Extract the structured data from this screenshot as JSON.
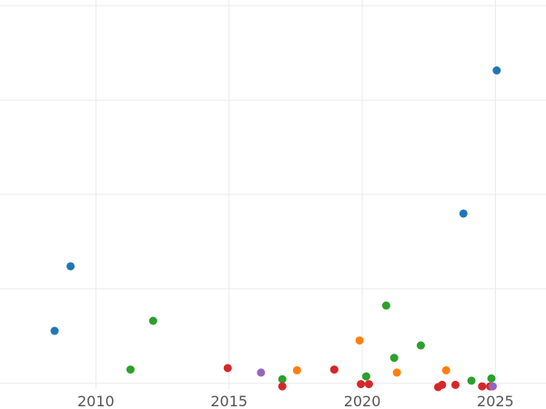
{
  "chart_data": {
    "type": "scatter",
    "title": "",
    "xlabel": "",
    "ylabel": "",
    "grid": true,
    "xlim": [
      2006.4,
      2026.9
    ],
    "ylim": [
      -0.3,
      20.3
    ],
    "x_ticks": [
      2010,
      2015,
      2020,
      2025
    ],
    "x_tick_labels": [
      "2010",
      "2015",
      "2020",
      "2025"
    ],
    "y_gridlines": [
      0,
      5,
      10,
      15,
      20
    ],
    "colors": {
      "blue": "#1f77b4",
      "orange": "#ff7f0e",
      "green": "#2ca02c",
      "red": "#d62728",
      "purple": "#9467bd"
    },
    "series": [
      {
        "color": "#1f77b4",
        "points": [
          {
            "x": 2008.45,
            "y": 2.78
          },
          {
            "x": 2009.05,
            "y": 6.2
          },
          {
            "x": 2023.8,
            "y": 8.99
          },
          {
            "x": 2025.05,
            "y": 16.57
          }
        ]
      },
      {
        "color": "#ff7f0e",
        "points": [
          {
            "x": 2017.55,
            "y": 0.69
          },
          {
            "x": 2019.9,
            "y": 2.27
          },
          {
            "x": 2021.3,
            "y": 0.57
          },
          {
            "x": 2023.15,
            "y": 0.69
          }
        ]
      },
      {
        "color": "#2ca02c",
        "points": [
          {
            "x": 2011.3,
            "y": 0.73
          },
          {
            "x": 2012.15,
            "y": 3.31
          },
          {
            "x": 2017.0,
            "y": 0.22
          },
          {
            "x": 2020.15,
            "y": 0.37
          },
          {
            "x": 2020.9,
            "y": 4.12
          },
          {
            "x": 2021.2,
            "y": 1.35
          },
          {
            "x": 2022.2,
            "y": 2.01
          },
          {
            "x": 2024.1,
            "y": 0.14
          },
          {
            "x": 2024.85,
            "y": 0.26
          }
        ]
      },
      {
        "color": "#d62728",
        "points": [
          {
            "x": 2014.95,
            "y": 0.81
          },
          {
            "x": 2017.0,
            "y": -0.16
          },
          {
            "x": 2018.95,
            "y": 0.73
          },
          {
            "x": 2019.95,
            "y": -0.04
          },
          {
            "x": 2020.25,
            "y": -0.04
          },
          {
            "x": 2022.85,
            "y": -0.2
          },
          {
            "x": 2023.0,
            "y": -0.08
          },
          {
            "x": 2023.5,
            "y": -0.08
          },
          {
            "x": 2024.5,
            "y": -0.16
          },
          {
            "x": 2024.8,
            "y": -0.16
          }
        ]
      },
      {
        "color": "#9467bd",
        "points": [
          {
            "x": 2016.2,
            "y": 0.57
          },
          {
            "x": 2024.9,
            "y": -0.16
          }
        ]
      }
    ]
  }
}
